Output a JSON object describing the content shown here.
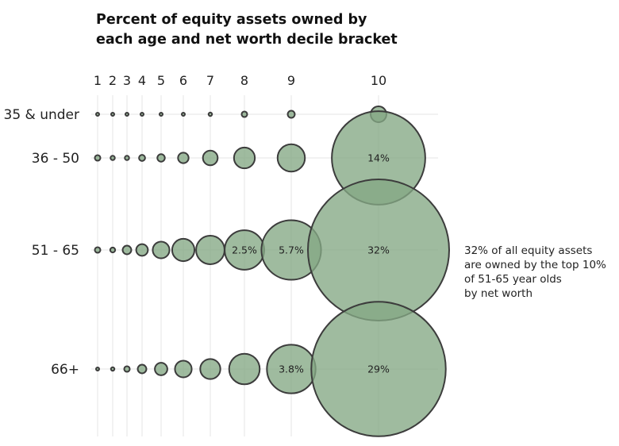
{
  "chart_data": {
    "type": "bubble",
    "title": "Percent of equity assets owned by each age and net worth decile bracket",
    "title_lines": [
      "Percent of equity assets owned by",
      "each age and net worth decile bracket"
    ],
    "columns": [
      "1",
      "2",
      "3",
      "4",
      "5",
      "6",
      "7",
      "8",
      "9",
      "10"
    ],
    "rows": [
      "35 & under",
      "36 - 50",
      "51 - 65",
      "66+"
    ],
    "values": [
      [
        0.01,
        0.01,
        0.005,
        0.005,
        0.005,
        0.01,
        0.02,
        0.05,
        0.08,
        0.4
      ],
      [
        0.05,
        0.03,
        0.03,
        0.06,
        0.09,
        0.18,
        0.35,
        0.7,
        1.2,
        14
      ],
      [
        0.05,
        0.04,
        0.12,
        0.22,
        0.45,
        0.8,
        1.3,
        2.5,
        5.7,
        32
      ],
      [
        0.01,
        0.02,
        0.05,
        0.12,
        0.25,
        0.45,
        0.65,
        1.5,
        3.8,
        29
      ]
    ],
    "data_labels": [
      {
        "row": 1,
        "col": 9,
        "text": "14%"
      },
      {
        "row": 2,
        "col": 7,
        "text": "2.5%"
      },
      {
        "row": 2,
        "col": 8,
        "text": "5.7%"
      },
      {
        "row": 2,
        "col": 9,
        "text": "32%"
      },
      {
        "row": 3,
        "col": 8,
        "text": "3.8%"
      },
      {
        "row": 3,
        "col": 9,
        "text": "29%"
      }
    ],
    "annotation_lines": [
      "32% of all equity assets",
      "are owned by the top 10%",
      "of 51-65 year olds",
      "by net worth"
    ],
    "unit": "%",
    "colors": {
      "bubble_fill": "#84a884",
      "bubble_stroke": "#3c3c3c",
      "grid": "#e6e6e6"
    }
  }
}
